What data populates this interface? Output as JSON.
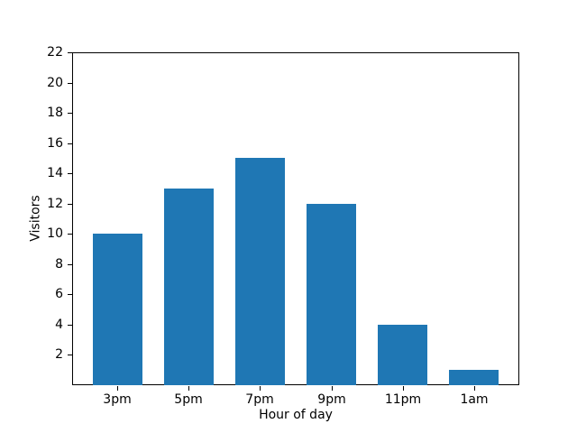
{
  "chart_data": {
    "type": "bar",
    "categories": [
      "3pm",
      "5pm",
      "7pm",
      "9pm",
      "11pm",
      "1am"
    ],
    "values": [
      10,
      13,
      15,
      12,
      4,
      1
    ],
    "xlabel": "Hour of day",
    "ylabel": "Visitors",
    "ylim": [
      0,
      22
    ],
    "yticks": [
      2,
      4,
      6,
      8,
      10,
      12,
      14,
      16,
      18,
      20,
      22
    ],
    "bar_color": "#1f77b4",
    "grid": false,
    "legend": "none",
    "bar_width_fraction": 0.7,
    "xlim": [
      -0.635,
      5.635
    ]
  }
}
